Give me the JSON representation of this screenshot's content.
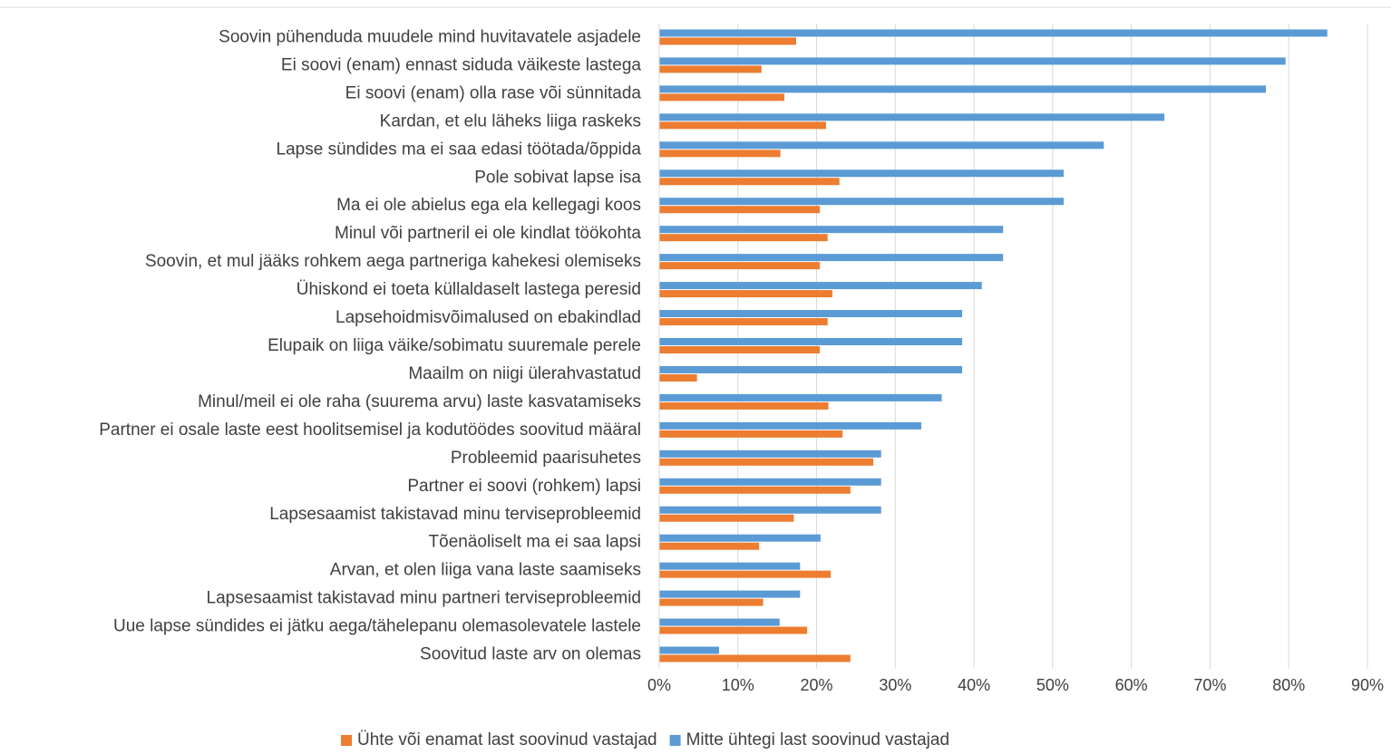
{
  "chart_data": {
    "type": "hbar",
    "categories": [
      "Soovin pühenduda muudele mind huvitavatele asjadele",
      "Ei soovi (enam) ennast siduda väikeste lastega",
      "Ei soovi (enam) olla rase või sünnitada",
      "Kardan, et elu läheks liiga raskeks",
      "Lapse sündides ma ei saa edasi töötada/õppida",
      "Pole sobivat lapse isa",
      "Ma ei ole abielus ega ela kellegagi koos",
      "Minul või partneril ei ole kindlat töökohta",
      "Soovin, et mul jääks rohkem aega partneriga kahekesi olemiseks",
      "Ühiskond ei toeta küllaldaselt lastega peresid",
      "Lapsehoidmisvõimalused on ebakindlad",
      "Elupaik on liiga väike/sobimatu suuremale perele",
      "Maailm on niigi ülerahvastatud",
      "Minul/meil ei ole raha (suurema arvu) laste kasvatamiseks",
      "Partner ei osale laste eest hoolitsemisel ja kodutöödes soovitud määral",
      "Probleemid paarisuhetes",
      "Partner ei soovi (rohkem) lapsi",
      "Lapsesaamist takistavad minu terviseprobleemid",
      "Tõenäoliselt ma ei saa lapsi",
      "Arvan, et olen liiga vana laste saamiseks",
      "Lapsesaamist takistavad minu partneri terviseprobleemid",
      "Uue lapse sündides ei jätku aega/tähelepanu olemasolevatele lastele",
      "Soovitud laste arv on olemas"
    ],
    "series": [
      {
        "name": "Ühte või enamat last soovinud vastajad",
        "color": "#ed7d31",
        "values": [
          17.4,
          13.0,
          15.9,
          21.2,
          15.4,
          22.9,
          20.4,
          21.4,
          20.4,
          22.0,
          21.4,
          20.4,
          4.8,
          21.5,
          23.3,
          27.2,
          24.3,
          17.1,
          12.7,
          21.8,
          13.2,
          18.8,
          24.3
        ]
      },
      {
        "name": "Mitte ühtegi last soovinud vastajad",
        "color": "#5b9bd5",
        "values": [
          84.9,
          79.6,
          77.1,
          64.2,
          56.5,
          51.4,
          51.4,
          43.7,
          43.7,
          41.0,
          38.5,
          38.5,
          38.5,
          35.9,
          33.3,
          28.2,
          28.2,
          28.2,
          20.5,
          17.9,
          17.9,
          15.3,
          7.6
        ]
      }
    ],
    "xlim": [
      0,
      90
    ],
    "xticks": [
      {
        "value": 0,
        "label": "0%"
      },
      {
        "value": 10,
        "label": "10%"
      },
      {
        "value": 20,
        "label": "20%"
      },
      {
        "value": 30,
        "label": "30%"
      },
      {
        "value": 40,
        "label": "40%"
      },
      {
        "value": 50,
        "label": "50%"
      },
      {
        "value": 60,
        "label": "60%"
      },
      {
        "value": 70,
        "label": "70%"
      },
      {
        "value": 80,
        "label": "80%"
      },
      {
        "value": 90,
        "label": "90%"
      }
    ],
    "grid": true,
    "legend": "bottom"
  }
}
